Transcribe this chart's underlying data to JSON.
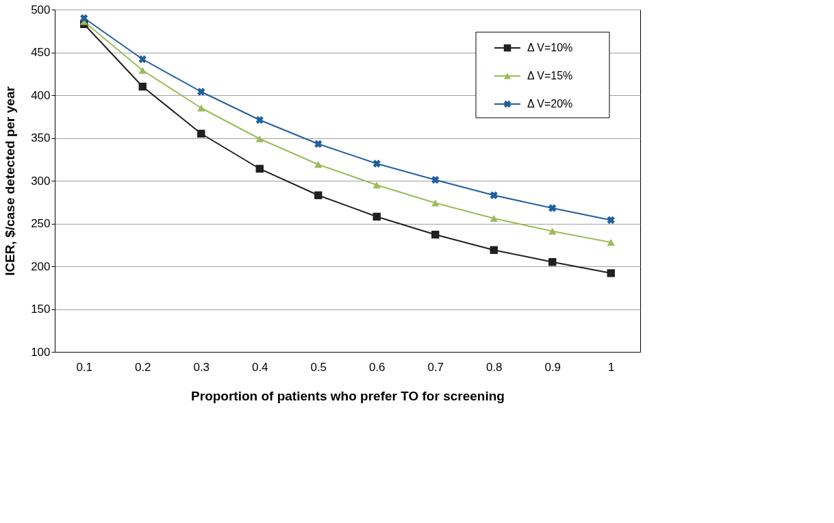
{
  "chart_data": {
    "type": "line",
    "xlabel": "Proportion of patients who prefer TO for screening",
    "ylabel": "ICER, $/case detected per year",
    "categories": [
      "0.1",
      "0.2",
      "0.3",
      "0.4",
      "0.5",
      "0.6",
      "0.7",
      "0.8",
      "0.9",
      "1"
    ],
    "series": [
      {
        "name": "Δ V=10%",
        "color": "#231f20",
        "marker": "square",
        "values": [
          483,
          410,
          355,
          314,
          283,
          258,
          237,
          219,
          205,
          192
        ]
      },
      {
        "name": "Δ V=15%",
        "color": "#9bbb59",
        "marker": "triangle",
        "values": [
          486,
          429,
          385,
          349,
          319,
          295,
          274,
          256,
          241,
          228
        ]
      },
      {
        "name": "Δ V=20%",
        "color": "#1f5fa0",
        "marker": "cross",
        "values": [
          490,
          442,
          404,
          371,
          343,
          320,
          301,
          283,
          268,
          254
        ]
      }
    ],
    "ylim": [
      100,
      500
    ],
    "yticks": [
      100,
      150,
      200,
      250,
      300,
      350,
      400,
      450,
      500
    ],
    "grid": "y",
    "legend": "top right",
    "line_style": "solid"
  }
}
